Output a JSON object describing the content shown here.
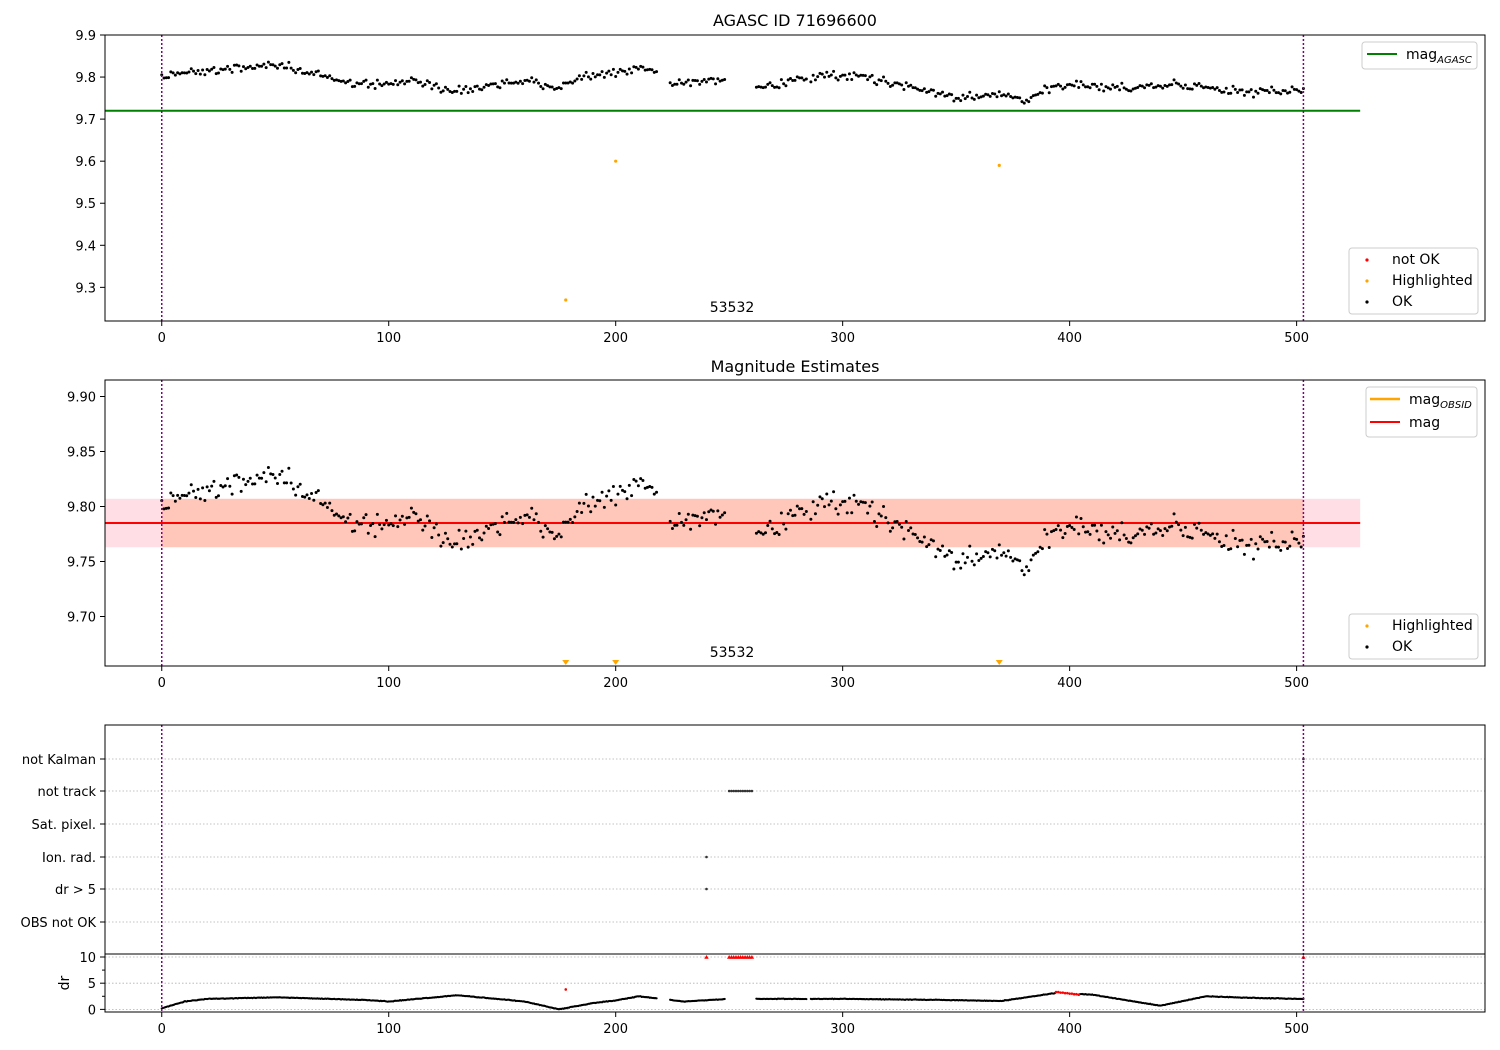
{
  "panels": {
    "p1": {
      "title": "AGASC ID 71696600",
      "obsid_label": "53532",
      "yticks": [
        "9.3",
        "9.4",
        "9.5",
        "9.6",
        "9.7",
        "9.8",
        "9.9"
      ],
      "xticks": [
        "0",
        "100",
        "200",
        "300",
        "400",
        "500"
      ],
      "legend_top": {
        "label": "mag",
        "subscript": "AGASC"
      },
      "legend_bottom": [
        "not OK",
        "Highlighted",
        "OK"
      ]
    },
    "p2": {
      "title": "Magnitude Estimates",
      "obsid_label": "53532",
      "yticks": [
        "9.70",
        "9.75",
        "9.80",
        "9.85",
        "9.90"
      ],
      "xticks": [
        "0",
        "100",
        "200",
        "300",
        "400",
        "500"
      ],
      "legend_top": [
        {
          "label": "mag",
          "subscript": "OBSID"
        },
        {
          "label": "mag",
          "subscript": ""
        }
      ],
      "legend_bottom": [
        "Highlighted",
        "OK"
      ]
    },
    "p3": {
      "flag_labels": [
        "not Kalman",
        "not track",
        "Sat. pixel.",
        "Ion. rad.",
        "dr > 5",
        "OBS not OK"
      ],
      "dr_ticks": [
        "0",
        "5",
        "10"
      ],
      "dr_ylabel": "dr",
      "xticks": [
        "0",
        "100",
        "200",
        "300",
        "400",
        "500"
      ]
    }
  },
  "colors": {
    "ok": "#000000",
    "highlighted": "#ffa500",
    "not_ok": "#ff0000",
    "agasc_line": "#008000",
    "obsid_line": "#ffa500",
    "mag_line": "#ff0000",
    "band": "#ffc0cb",
    "obs_boundary": "#800080"
  },
  "chart_data": [
    {
      "type": "scatter",
      "title": "AGASC ID 71696600",
      "xlim": [
        -25,
        583
      ],
      "ylim": [
        9.22,
        9.9
      ],
      "grid": false,
      "legend_placement": [
        "top-right",
        "bottom-right"
      ],
      "obs_boundaries": [
        0,
        503
      ],
      "agasc_mag": 9.72,
      "agasc_line_x": [
        -25,
        528
      ],
      "series": [
        {
          "name": "OK",
          "points": "about 500 black points between 9.72 and 9.84, mean about 9.785"
        },
        {
          "name": "Highlighted",
          "x": [
            178,
            200,
            369
          ],
          "y": [
            9.27,
            9.6,
            9.59
          ]
        },
        {
          "name": "not OK",
          "x": [],
          "y": []
        }
      ],
      "profile_x": [
        0,
        30,
        50,
        70,
        90,
        110,
        130,
        160,
        175,
        185,
        200,
        215,
        225,
        245,
        260,
        290,
        310,
        330,
        350,
        370,
        380,
        395,
        420,
        450,
        480,
        503
      ],
      "profile_y": [
        9.805,
        9.822,
        9.83,
        9.805,
        9.78,
        9.79,
        9.77,
        9.79,
        9.775,
        9.8,
        9.81,
        9.82,
        9.785,
        9.795,
        9.775,
        9.805,
        9.8,
        9.775,
        9.75,
        9.76,
        9.75,
        9.78,
        9.775,
        9.78,
        9.765,
        9.77
      ]
    },
    {
      "type": "scatter",
      "title": "Magnitude Estimates",
      "xlim": [
        -25,
        583
      ],
      "ylim": [
        9.655,
        9.915
      ],
      "grid": false,
      "legend_placement": [
        "top-right",
        "bottom-right"
      ],
      "mag": 9.785,
      "mag_band": [
        9.763,
        9.807
      ],
      "mag_line_x": [
        -25,
        528
      ],
      "obsid_band_x": [
        0,
        503
      ],
      "highlighted_markers_x": [
        178,
        200,
        369
      ],
      "series": [
        {
          "name": "OK",
          "points": "same magnitudes as top panel, rescaled"
        },
        {
          "name": "Highlighted",
          "x": [
            178,
            200,
            369
          ],
          "y": "below axis, shown as down-triangles"
        }
      ]
    },
    {
      "type": "scatter",
      "xlim": [
        -25,
        583
      ],
      "flags": {
        "not Kalman": [
          503
        ],
        "not track": [
          250,
          251,
          252,
          253,
          254,
          255,
          256,
          257,
          258,
          259,
          260
        ],
        "Sat. pixel.": [],
        "Ion. rad.": [
          240
        ],
        "dr > 5": [
          240
        ],
        "OBS not OK": []
      },
      "dr": {
        "ylabel": "dr",
        "ylim": [
          -0.5,
          10
        ],
        "profile_x": [
          0,
          10,
          20,
          50,
          90,
          100,
          130,
          160,
          175,
          190,
          200,
          210,
          230,
          250,
          300,
          345,
          370,
          395,
          410,
          440,
          460,
          480,
          503
        ],
        "profile_y": [
          0.2,
          1.5,
          2.0,
          2.3,
          1.8,
          1.5,
          2.7,
          1.5,
          0.0,
          1.2,
          1.7,
          2.5,
          1.5,
          2.0,
          2.0,
          1.8,
          1.6,
          3.2,
          2.8,
          0.7,
          2.5,
          2.2,
          2.0
        ],
        "red_points_x": [
          394,
          395,
          396,
          397,
          398,
          399,
          400,
          401,
          402,
          403,
          404
        ],
        "red_points_y": [
          3.3,
          3.3,
          3.2,
          3.2,
          3.1,
          3.1,
          3.0,
          3.0,
          2.9,
          2.9,
          2.8
        ],
        "red_outlier": {
          "x": 178,
          "y": 3.8
        },
        "clipped_red_x": [
          240,
          250,
          251,
          252,
          253,
          254,
          255,
          256,
          257,
          258,
          259,
          260,
          503
        ]
      }
    }
  ]
}
